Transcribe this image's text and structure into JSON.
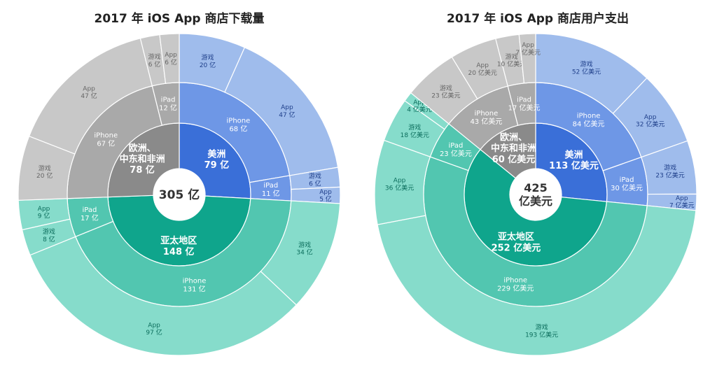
{
  "colors": {
    "am_outer": "#9fbcec",
    "am_mid": "#6e97e6",
    "am_inner": "#3a6fd8",
    "eu_outer": "#c8c8c8",
    "eu_mid": "#a9a9a9",
    "eu_inner": "#8a8a8a",
    "ap_outer": "#86dccb",
    "ap_mid": "#52c6b0",
    "ap_inner": "#0fa58c",
    "lbl_am": "#1f3f8a",
    "lbl_eu": "#666666",
    "lbl_ap": "#0b6d5c"
  },
  "chart_data": [
    {
      "type": "sunburst",
      "title": "2017 年 iOS App 商店下载量",
      "total_label": "305 亿",
      "total": 305,
      "regions": [
        {
          "key": "am",
          "name": "美洲",
          "label": "79 亿",
          "value": 79,
          "devices": [
            {
              "name": "iPhone",
              "label": "68 亿",
              "value": 68,
              "children": [
                {
                  "name": "游戏",
                  "label": "20 亿",
                  "value": 20
                },
                {
                  "name": "App",
                  "label": "47 亿",
                  "value": 47
                }
              ]
            },
            {
              "name": "iPad",
              "label": "11 亿",
              "value": 11,
              "children": [
                {
                  "name": "游戏",
                  "label": "6 亿",
                  "value": 6
                },
                {
                  "name": "App",
                  "label": "5 亿",
                  "value": 5
                }
              ]
            }
          ]
        },
        {
          "key": "ap",
          "name": "亚太地区",
          "label": "148 亿",
          "value": 148,
          "devices": [
            {
              "name": "iPhone",
              "label": "131 亿",
              "value": 131,
              "children": [
                {
                  "name": "游戏",
                  "label": "34 亿",
                  "value": 34
                },
                {
                  "name": "App",
                  "label": "97 亿",
                  "value": 97
                }
              ]
            },
            {
              "name": "iPad",
              "label": "17 亿",
              "value": 17,
              "children": [
                {
                  "name": "游戏",
                  "label": "8 亿",
                  "value": 8
                },
                {
                  "name": "App",
                  "label": "9 亿",
                  "value": 9
                }
              ]
            }
          ]
        },
        {
          "key": "eu",
          "name": "欧洲、中东和非洲",
          "name_lines": [
            "欧洲、",
            "中东和非洲"
          ],
          "label": "78 亿",
          "value": 78,
          "devices": [
            {
              "name": "iPhone",
              "label": "67 亿",
              "value": 67,
              "children": [
                {
                  "name": "游戏",
                  "label": "20 亿",
                  "value": 20
                },
                {
                  "name": "App",
                  "label": "47 亿",
                  "value": 47
                }
              ]
            },
            {
              "name": "iPad",
              "label": "12 亿",
              "value": 12,
              "children": [
                {
                  "name": "游戏",
                  "label": "6 亿",
                  "value": 6
                },
                {
                  "name": "App",
                  "label": "6 亿",
                  "value": 6
                }
              ]
            }
          ]
        }
      ]
    },
    {
      "type": "sunburst",
      "title": "2017 年 iOS App 商店用户支出",
      "total_label": "425 亿美元",
      "total_lines": [
        "425",
        "亿美元"
      ],
      "total": 425,
      "regions": [
        {
          "key": "am",
          "name": "美洲",
          "label": "113 亿美元",
          "value": 113,
          "devices": [
            {
              "name": "iPhone",
              "label": "84 亿美元",
              "value": 84,
              "children": [
                {
                  "name": "游戏",
                  "label": "52 亿美元",
                  "value": 52
                },
                {
                  "name": "App",
                  "label": "32 亿美元",
                  "value": 32
                }
              ]
            },
            {
              "name": "iPad",
              "label": "30 亿美元",
              "value": 30,
              "children": [
                {
                  "name": "游戏",
                  "label": "23 亿美元",
                  "value": 23
                },
                {
                  "name": "App",
                  "label": "7 亿美元",
                  "value": 7
                }
              ]
            }
          ]
        },
        {
          "key": "ap",
          "name": "亚太地区",
          "label": "252 亿美元",
          "value": 252,
          "devices": [
            {
              "name": "iPhone",
              "label": "229 亿美元",
              "value": 229,
              "children": [
                {
                  "name": "游戏",
                  "label": "193 亿美元",
                  "value": 193
                },
                {
                  "name": "App",
                  "label": "36 亿美元",
                  "value": 36
                }
              ]
            },
            {
              "name": "iPad",
              "label": "23 亿美元",
              "value": 23,
              "children": [
                {
                  "name": "游戏",
                  "label": "18 亿美元",
                  "value": 18
                },
                {
                  "name": "App",
                  "label": "4 亿美元",
                  "value": 4
                }
              ]
            }
          ]
        },
        {
          "key": "eu",
          "name": "欧洲、中东和非洲",
          "name_lines": [
            "欧洲、",
            "中东和非洲"
          ],
          "label": "60 亿美元",
          "value": 60,
          "devices": [
            {
              "name": "iPhone",
              "label": "43 亿美元",
              "value": 43,
              "children": [
                {
                  "name": "游戏",
                  "label": "23 亿美元",
                  "value": 23
                },
                {
                  "name": "App",
                  "label": "20 亿美元",
                  "value": 20
                }
              ]
            },
            {
              "name": "iPad",
              "label": "17 亿美元",
              "value": 17,
              "children": [
                {
                  "name": "游戏",
                  "label": "10 亿美元",
                  "value": 10
                },
                {
                  "name": "App",
                  "label": "7 亿美元",
                  "value": 7
                }
              ]
            }
          ]
        }
      ]
    }
  ]
}
